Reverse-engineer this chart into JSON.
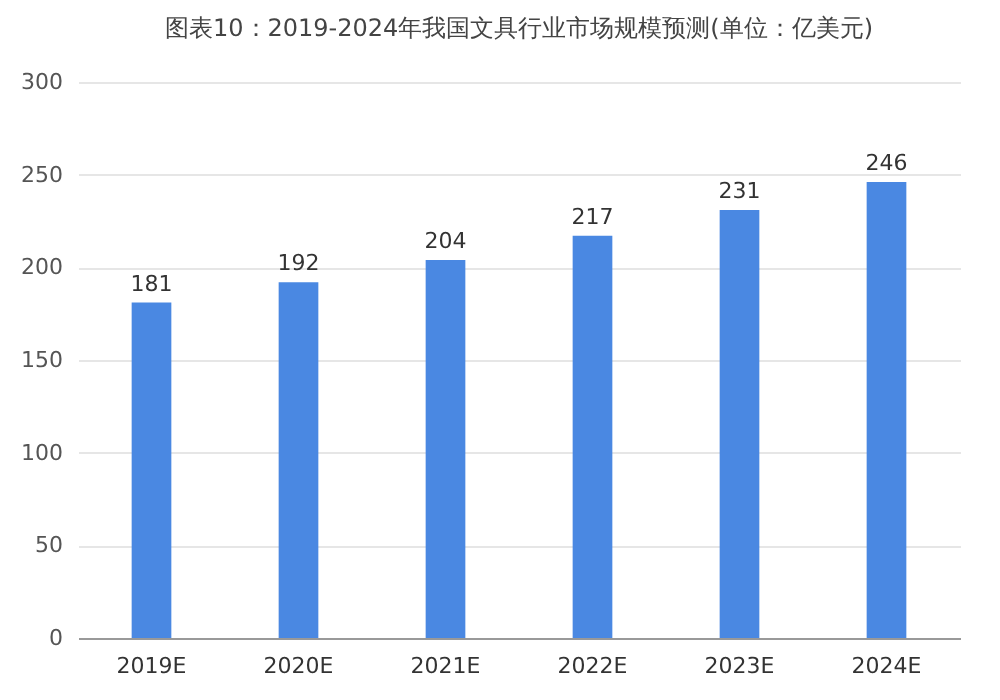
{
  "chart_data": {
    "type": "bar",
    "title": "图表10：2019-2024年我国文具行业市场规模预测(单位：亿美元)",
    "categories": [
      "2019E",
      "2020E",
      "2021E",
      "2022E",
      "2023E",
      "2024E"
    ],
    "values": [
      181,
      192,
      204,
      217,
      231,
      246
    ],
    "color": "#4a88e2",
    "ylim": [
      0,
      300
    ],
    "yticks": [
      0,
      50,
      100,
      150,
      200,
      250,
      300
    ],
    "grid": "y",
    "data_labels": true
  }
}
